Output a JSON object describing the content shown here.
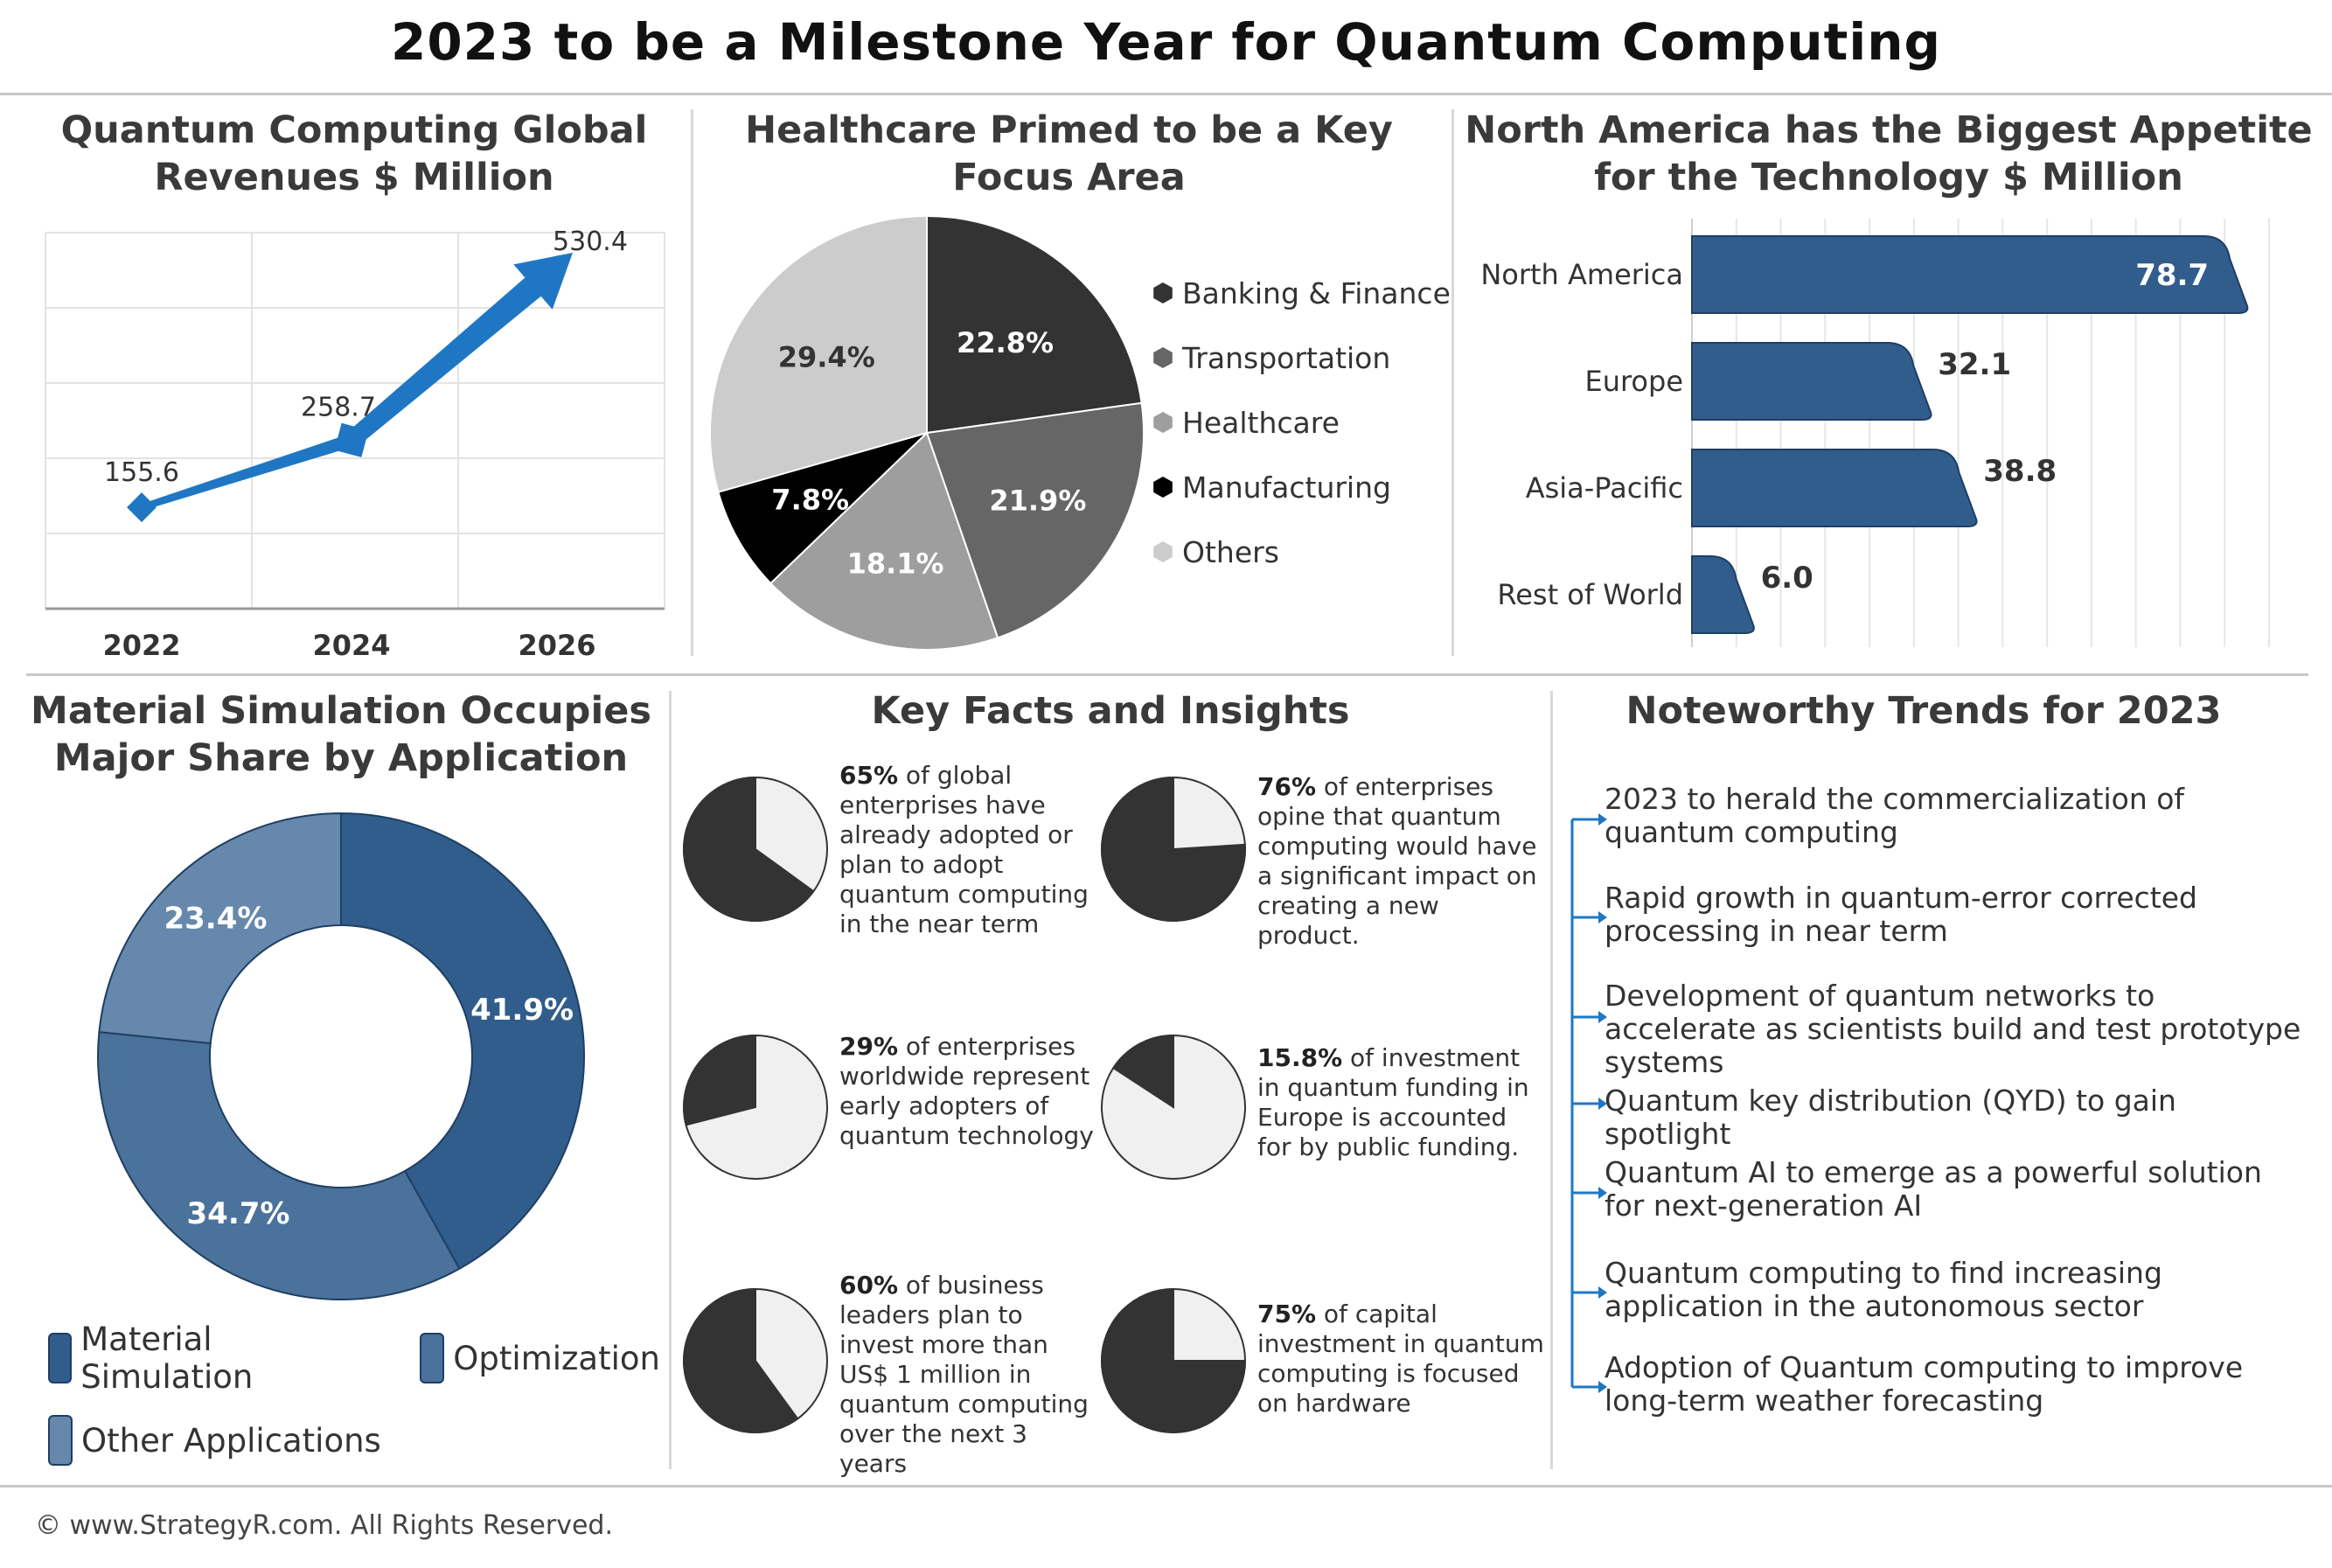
{
  "title": "2023 to be a Milestone Year for Quantum Computing",
  "panels": {
    "revenue": {
      "title_line1": "Quantum Computing Global",
      "title_line2": "Revenues $ Million"
    },
    "healthcare": {
      "title_line1": "Healthcare Primed to be a Key",
      "title_line2": "Focus Area"
    },
    "regions": {
      "title_line1": "North America has the Biggest Appetite",
      "title_line2": "for the Technology $ Million"
    },
    "applications": {
      "title_line1": "Material Simulation Occupies",
      "title_line2": "Major Share by Application"
    },
    "facts": {
      "title": "Key Facts and Insights"
    },
    "trends": {
      "title": "Noteworthy Trends for 2023"
    }
  },
  "colors": {
    "accent_blue": "#1f77c4",
    "bar_blue": "#305d8c",
    "dark": "#333333"
  },
  "chart_data": [
    {
      "type": "line",
      "categories": [
        "2022",
        "2024",
        "2026"
      ],
      "values": [
        155.6,
        258.7,
        530.4
      ],
      "value_labels": [
        "155.6",
        "258.7",
        "530.4"
      ],
      "ylim": [
        0,
        560
      ],
      "grid": true
    },
    {
      "type": "pie",
      "categories": [
        "Banking & Finance",
        "Transportation",
        "Healthcare",
        "Manufacturing",
        "Others"
      ],
      "values": [
        22.8,
        21.9,
        18.1,
        7.8,
        29.4
      ],
      "labels": [
        "22.8%",
        "21.9%",
        "18.1%",
        "7.8%",
        "29.4%"
      ],
      "colors": [
        "#333333",
        "#666666",
        "#9e9e9e",
        "#000000",
        "#cccccc"
      ],
      "legend": "right"
    },
    {
      "type": "bar",
      "orientation": "horizontal",
      "categories": [
        "North America",
        "Europe",
        "Asia-Pacific",
        "Rest of World"
      ],
      "values": [
        78.7,
        32.1,
        38.8,
        6.0
      ],
      "labels": [
        "78.7",
        "32.1",
        "38.8",
        "6.0"
      ],
      "xlim": [
        0,
        85
      ],
      "grid": true
    },
    {
      "type": "pie",
      "style": "donut",
      "categories": [
        "Material Simulation",
        "Optimization",
        "Other Applications"
      ],
      "values": [
        41.9,
        34.7,
        23.4
      ],
      "labels": [
        "41.9%",
        "34.7%",
        "23.4%"
      ],
      "colors": [
        "#305d8c",
        "#4a729b",
        "#6688ac"
      ],
      "legend": "bottom"
    }
  ],
  "facts": [
    {
      "pct": "65%",
      "text": " of global enterprises have already adopted or plan to adopt quantum computing in the near term",
      "value": 65
    },
    {
      "pct": "76%",
      "text": " of enterprises opine that quantum computing would have a significant impact on creating a new product.",
      "value": 76
    },
    {
      "pct": "29%",
      "text": " of enterprises worldwide represent early adopters of quantum technology",
      "value": 29
    },
    {
      "pct": "15.8%",
      "text": " of investment in quantum funding in Europe is accounted for by public funding.",
      "value": 15.8
    },
    {
      "pct": "60%",
      "text": " of business leaders plan to invest more than US$ 1 million in quantum computing over the next 3 years",
      "value": 60
    },
    {
      "pct": "75%",
      "text": " of capital investment in quantum computing is focused on hardware",
      "value": 75
    }
  ],
  "trends": [
    "2023 to herald the commercialization of quantum computing",
    "Rapid growth in quantum-error corrected processing in near term",
    "Development of quantum networks to accelerate as scientists build and test prototype systems",
    "Quantum key distribution (QYD) to gain spotlight",
    "Quantum AI to emerge as a powerful solution for next-generation AI",
    "Quantum computing to find increasing application in the autonomous sector",
    "Adoption of Quantum computing to  improve long-term weather forecasting"
  ],
  "footer": "© www.StrategyR.com. All Rights Reserved."
}
